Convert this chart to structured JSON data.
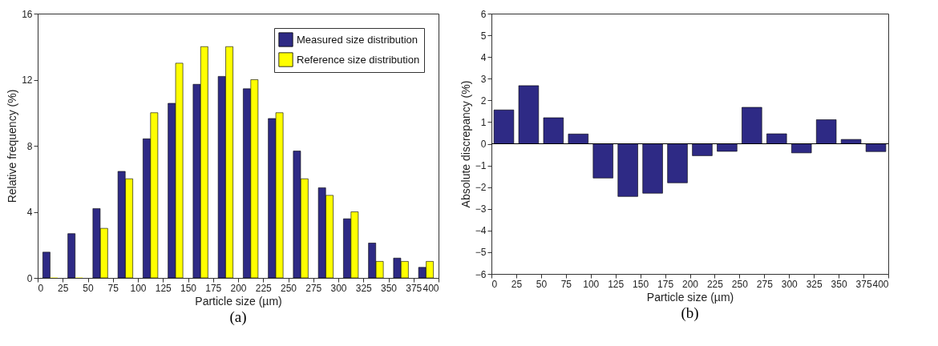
{
  "chart_data": [
    {
      "type": "bar",
      "xlabel": "Particle size (µm)",
      "ylabel": "Relative frequency (%)",
      "annotations": [
        "(a)"
      ],
      "x": [
        12.5,
        37.5,
        62.5,
        87.5,
        112.5,
        137.5,
        162.5,
        187.5,
        212.5,
        237.5,
        262.5,
        287.5,
        312.5,
        337.5,
        362.5,
        387.5
      ],
      "series": [
        {
          "name": "Measured size distribution",
          "color": "#2e2a85",
          "values": [
            1.56,
            2.68,
            4.2,
            6.45,
            8.42,
            10.57,
            11.72,
            12.2,
            11.45,
            9.65,
            7.68,
            5.46,
            3.58,
            2.11,
            1.2,
            0.64
          ]
        },
        {
          "name": "Reference size distribution",
          "color": "#ffff00",
          "values": [
            0,
            0,
            3,
            6,
            10,
            13,
            14,
            14,
            12,
            10,
            6,
            5,
            4,
            1,
            1,
            1
          ]
        }
      ],
      "xlim": [
        0,
        400
      ],
      "xticks": [
        0,
        25,
        50,
        75,
        100,
        125,
        150,
        175,
        200,
        225,
        250,
        275,
        300,
        325,
        350,
        375,
        400
      ],
      "ylim": [
        0,
        16
      ],
      "yticks": [
        0,
        4,
        8,
        12,
        16
      ],
      "legend": "top right"
    },
    {
      "type": "bar",
      "xlabel": "Particle size (µm)",
      "ylabel": "Absolute discrepancy (%)",
      "annotations": [
        "(b)"
      ],
      "x": [
        12.5,
        37.5,
        62.5,
        87.5,
        112.5,
        137.5,
        162.5,
        187.5,
        212.5,
        237.5,
        262.5,
        287.5,
        312.5,
        337.5,
        362.5,
        387.5
      ],
      "series": [
        {
          "color": "#2e2a85",
          "values": [
            1.56,
            2.68,
            1.2,
            0.45,
            -1.58,
            -2.43,
            -2.28,
            -1.8,
            -0.55,
            -0.35,
            1.68,
            0.46,
            -0.42,
            1.11,
            0.2,
            -0.36
          ]
        }
      ],
      "xlim": [
        0,
        400
      ],
      "xticks": [
        0,
        25,
        50,
        75,
        100,
        125,
        150,
        175,
        200,
        225,
        250,
        275,
        300,
        325,
        350,
        375,
        400
      ],
      "ylim": [
        -6,
        6
      ],
      "yticks": [
        -6,
        -5,
        -4,
        -3,
        -2,
        -1,
        0,
        1,
        2,
        3,
        4,
        5,
        6
      ],
      "ref_lines": [
        {
          "axis": "y",
          "value": 0,
          "color": "#000000"
        }
      ]
    }
  ]
}
